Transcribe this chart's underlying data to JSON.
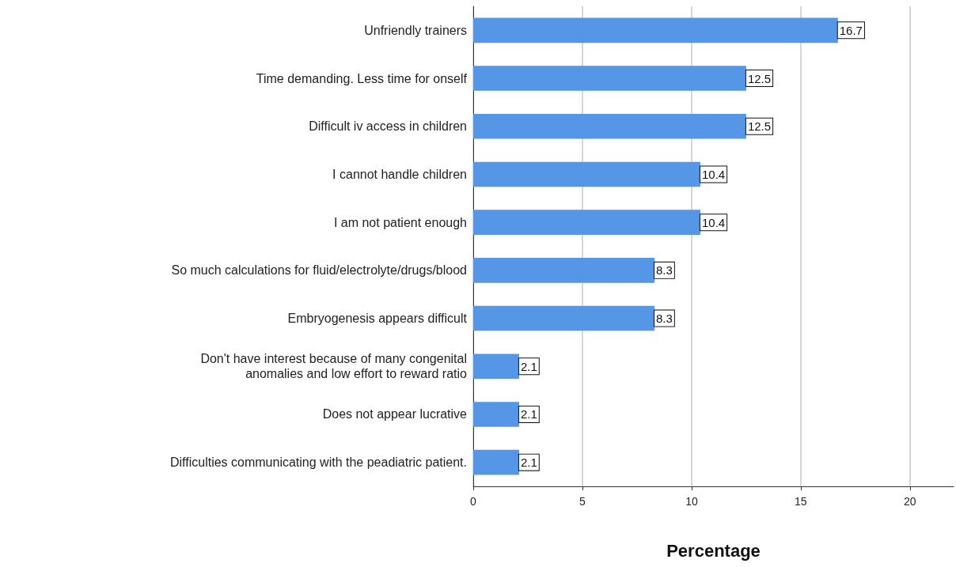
{
  "chart_data": {
    "type": "bar",
    "orientation": "horizontal",
    "xlabel": "Percentage",
    "categories": [
      "Unfriendly trainers",
      "Time demanding. Less time for onself",
      "Difficult iv access in children",
      "I cannot handle children",
      "I am not patient enough",
      "So much calculations for fluid/electrolyte/drugs/blood",
      "Embryogenesis appears difficult",
      "Don't have interest because of many congenital\nanomalies and low effort to reward ratio",
      "Does not appear lucrative",
      "Difficulties communicating with the peadiatric patient."
    ],
    "values": [
      16.7,
      12.5,
      12.5,
      10.4,
      10.4,
      8.3,
      8.3,
      2.1,
      2.1,
      2.1
    ],
    "color": "#5596e6",
    "xlim": [
      0,
      22
    ],
    "xticks": [
      0,
      5,
      10,
      15,
      20
    ],
    "grid": "x",
    "data_labels": true
  }
}
